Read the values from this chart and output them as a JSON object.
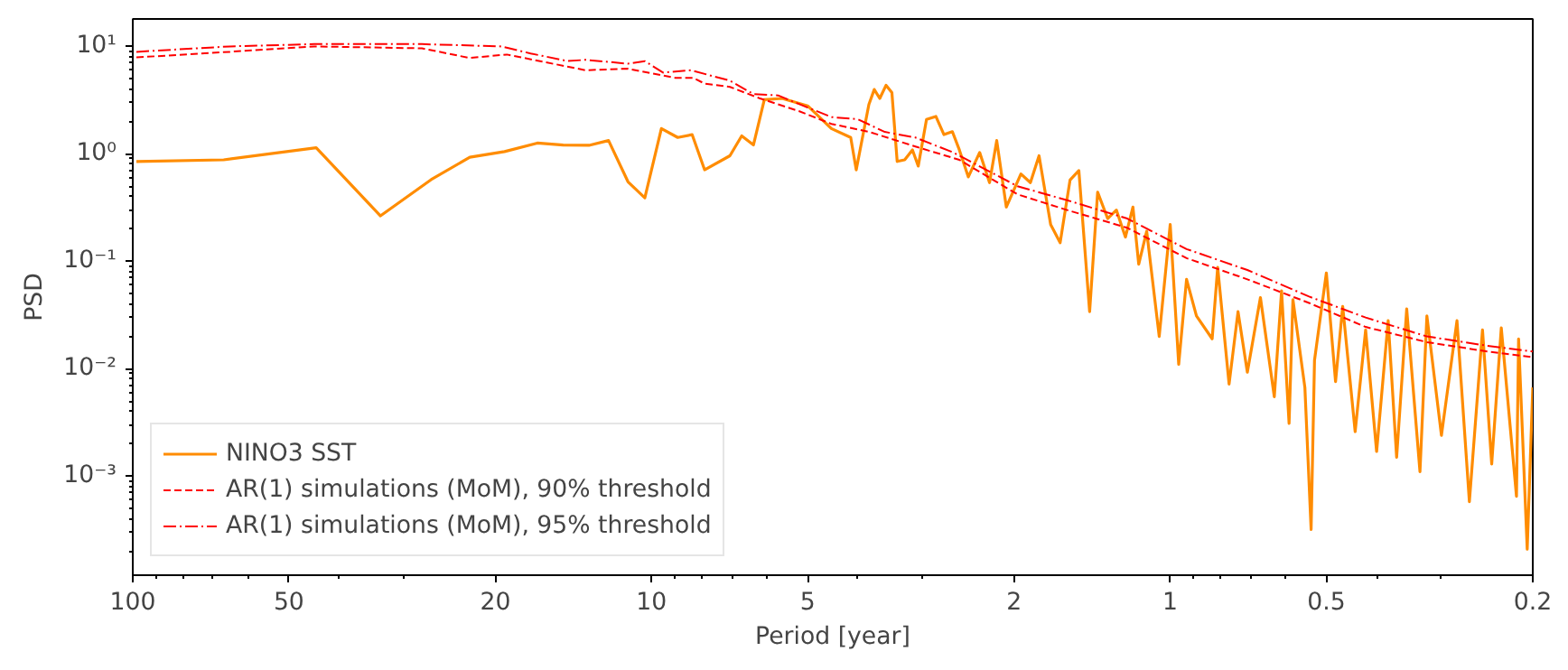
{
  "chart_data": {
    "type": "line",
    "xlabel": "Period [year]",
    "ylabel": "PSD",
    "log": "xy",
    "grid": false,
    "legend": "bottom left",
    "xlim": [
      100,
      0.2
    ],
    "xticks": [
      100,
      50,
      20,
      10,
      5,
      2,
      1,
      0.5,
      0.2
    ],
    "ylim": [
      0.00012,
      18
    ],
    "yticks": [
      {
        "value": 0.001,
        "label": "10⁻³"
      },
      {
        "value": 0.01,
        "label": "10⁻²"
      },
      {
        "value": 0.1,
        "label": "10⁻¹"
      },
      {
        "value": 1,
        "label": "10⁰"
      },
      {
        "value": 10,
        "label": "10¹"
      }
    ],
    "series": [
      {
        "name": "NINO3 SST",
        "color": "#ff8c00",
        "line_style": "solid",
        "x": [
          98.4,
          66.8,
          44.3,
          33.3,
          26.6,
          22.4,
          19.2,
          16.6,
          14.8,
          13.2,
          12.1,
          11.1,
          10.3,
          9.57,
          8.9,
          8.35,
          7.9,
          7.06,
          6.7,
          6.36,
          6.06,
          5.6,
          5.0,
          4.5,
          4.13,
          4.03,
          3.81,
          3.72,
          3.63,
          3.53,
          3.44,
          3.36,
          3.25,
          3.14,
          3.06,
          2.95,
          2.83,
          2.73,
          2.63,
          2.55,
          2.45,
          2.33,
          2.23,
          2.16,
          2.07,
          1.94,
          1.86,
          1.79,
          1.7,
          1.63,
          1.56,
          1.5,
          1.43,
          1.38,
          1.32,
          1.27,
          1.22,
          1.18,
          1.15,
          1.11,
          1.05,
          1.0,
          0.963,
          0.93,
          0.89,
          0.83,
          0.81,
          0.77,
          0.74,
          0.71,
          0.67,
          0.63,
          0.61,
          0.59,
          0.58,
          0.55,
          0.535,
          0.527,
          0.5,
          0.48,
          0.465,
          0.44,
          0.42,
          0.4,
          0.38,
          0.366,
          0.35,
          0.33,
          0.32,
          0.3,
          0.28,
          0.265,
          0.25,
          0.24,
          0.23,
          0.215,
          0.213,
          0.205,
          0.2
        ],
        "values": [
          0.85,
          0.88,
          1.14,
          0.265,
          0.575,
          0.93,
          1.05,
          1.26,
          1.21,
          1.2,
          1.33,
          0.55,
          0.39,
          1.72,
          1.42,
          1.51,
          0.71,
          0.96,
          1.47,
          1.21,
          3.19,
          3.28,
          2.8,
          1.72,
          1.42,
          0.71,
          2.88,
          3.97,
          3.28,
          4.35,
          3.72,
          0.85,
          0.88,
          1.09,
          0.77,
          2.09,
          2.23,
          1.51,
          1.61,
          1.09,
          0.61,
          1.03,
          0.54,
          1.33,
          0.32,
          0.65,
          0.54,
          0.96,
          0.22,
          0.149,
          0.57,
          0.7,
          0.034,
          0.44,
          0.25,
          0.3,
          0.168,
          0.32,
          0.094,
          0.19,
          0.02,
          0.22,
          0.011,
          0.068,
          0.031,
          0.019,
          0.088,
          0.0072,
          0.034,
          0.0093,
          0.046,
          0.0055,
          0.053,
          0.0031,
          0.044,
          0.0067,
          0.00032,
          0.012,
          0.078,
          0.0076,
          0.038,
          0.0026,
          0.023,
          0.0017,
          0.028,
          0.0015,
          0.036,
          0.0011,
          0.031,
          0.0024,
          0.028,
          0.00058,
          0.023,
          0.0013,
          0.024,
          0.00065,
          0.019,
          0.00021,
          0.0067
        ]
      },
      {
        "name": "AR(1) simulations (MoM), 90% threshold",
        "color": "#ff0000",
        "line_style": "dashed",
        "x": [
          98.4,
          65,
          44.7,
          27.7,
          22.4,
          19,
          13.4,
          11.1,
          9.0,
          8.3,
          7.9,
          7.06,
          6.2,
          5.2,
          4.5,
          3.8,
          3.1,
          2.55,
          1.97,
          1.58,
          1.21,
          0.93,
          0.71,
          0.54,
          0.42,
          0.32,
          0.245,
          0.2
        ],
        "values": [
          7.9,
          8.9,
          10,
          9.6,
          7.8,
          8.4,
          6.0,
          6.2,
          5.1,
          5.1,
          4.5,
          4.2,
          3.3,
          2.5,
          1.9,
          1.6,
          1.17,
          0.88,
          0.42,
          0.3,
          0.205,
          0.107,
          0.068,
          0.041,
          0.0245,
          0.0177,
          0.0145,
          0.0128
        ]
      },
      {
        "name": "AR(1) simulations (MoM), 95% threshold",
        "color": "#ff0000",
        "line_style": "dashdot",
        "x": [
          98.4,
          65,
          44.7,
          27.7,
          19.5,
          17.1,
          14.5,
          13.4,
          11.1,
          10.3,
          9.5,
          8.4,
          7.06,
          6.36,
          5.7,
          5.0,
          4.5,
          4.0,
          3.55,
          3.1,
          2.62,
          1.97,
          1.58,
          1.21,
          0.93,
          0.71,
          0.54,
          0.42,
          0.32,
          0.245,
          0.2
        ],
        "values": [
          8.9,
          10,
          10.5,
          10.5,
          10,
          8.6,
          7.3,
          7.5,
          6.9,
          7.3,
          5.7,
          6.0,
          4.8,
          3.6,
          3.5,
          2.7,
          2.2,
          2.1,
          1.6,
          1.42,
          1.03,
          0.5,
          0.37,
          0.25,
          0.13,
          0.083,
          0.047,
          0.03,
          0.02,
          0.0164,
          0.0145
        ]
      }
    ]
  }
}
